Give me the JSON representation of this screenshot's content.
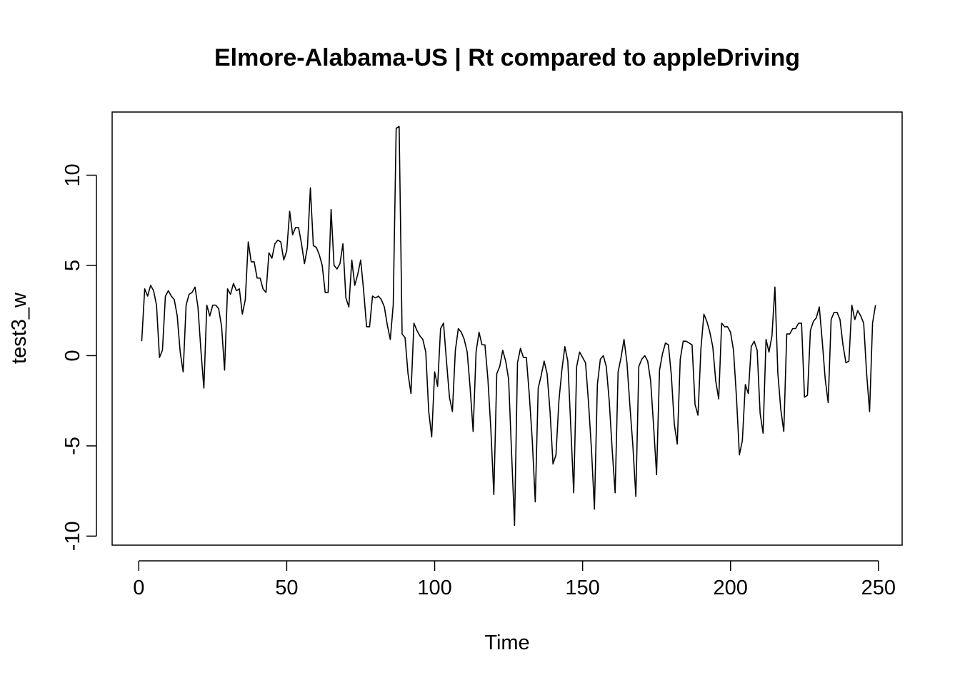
{
  "chart_data": {
    "type": "line",
    "title": "Elmore-Alabama-US | Rt compared to appleDriving",
    "xlabel": "Time",
    "ylabel": "test3_w",
    "xlim": [
      -9,
      258
    ],
    "ylim": [
      -10.5,
      13.5
    ],
    "x_ticks": [
      0,
      50,
      100,
      150,
      200,
      250
    ],
    "y_ticks": [
      -10,
      -5,
      0,
      5,
      10
    ],
    "grid": false,
    "legend": "none",
    "line_color": "#000000",
    "x_start": 1,
    "series": [
      {
        "values": [
          0.8,
          3.7,
          3.3,
          3.9,
          3.6,
          2.8,
          -0.1,
          0.3,
          3.3,
          3.6,
          3.3,
          3.1,
          2.2,
          0.2,
          -0.9,
          2.8,
          3.4,
          3.5,
          3.8,
          2.7,
          0.3,
          -1.8,
          2.8,
          2.2,
          2.8,
          2.8,
          2.6,
          1.6,
          -0.8,
          3.7,
          3.4,
          4.0,
          3.6,
          3.7,
          2.3,
          3.1,
          6.3,
          5.2,
          5.2,
          4.3,
          4.3,
          3.7,
          3.5,
          5.7,
          5.4,
          6.2,
          6.4,
          6.3,
          5.3,
          5.8,
          8.0,
          6.7,
          7.1,
          7.1,
          6.2,
          5.1,
          6.0,
          9.3,
          6.1,
          6.0,
          5.6,
          5.0,
          3.5,
          3.5,
          8.1,
          5.0,
          4.8,
          5.1,
          6.2,
          3.2,
          2.7,
          5.3,
          3.9,
          4.5,
          5.3,
          3.6,
          1.6,
          1.6,
          3.3,
          3.2,
          3.3,
          3.1,
          2.7,
          1.7,
          0.9,
          2.8,
          12.6,
          12.7,
          1.2,
          1.0,
          -1.0,
          -2.1,
          1.8,
          1.4,
          1.1,
          0.9,
          0.2,
          -3.1,
          -4.5,
          -0.9,
          -1.7,
          1.5,
          1.8,
          -0.3,
          -2.3,
          -3.1,
          0.3,
          1.5,
          1.3,
          0.9,
          0.2,
          -1.8,
          -4.2,
          0.2,
          1.3,
          0.6,
          0.6,
          -1.3,
          -4.1,
          -7.7,
          -1.0,
          -0.6,
          0.3,
          -0.3,
          -1.3,
          -5.4,
          -9.4,
          -0.4,
          0.4,
          -0.1,
          -0.1,
          -2.2,
          -4.7,
          -8.1,
          -1.8,
          -1.1,
          -0.3,
          -1.0,
          -3.1,
          -6.0,
          -5.5,
          -2.5,
          -0.8,
          0.5,
          -0.3,
          -3.9,
          -7.6,
          -0.6,
          0.2,
          -0.1,
          -0.4,
          -2.6,
          -5.2,
          -8.5,
          -1.6,
          -0.2,
          0.0,
          -0.6,
          -2.5,
          -5.2,
          -7.6,
          -0.9,
          -0.1,
          0.9,
          -0.4,
          -2.8,
          -5.0,
          -7.8,
          -0.6,
          -0.2,
          0.0,
          -0.3,
          -1.4,
          -3.9,
          -6.6,
          -0.8,
          0.1,
          0.7,
          0.6,
          -1.1,
          -3.8,
          -4.9,
          -0.2,
          0.8,
          0.8,
          0.7,
          0.6,
          -2.7,
          -3.3,
          0.4,
          2.3,
          1.9,
          1.3,
          0.5,
          -1.4,
          -2.4,
          1.8,
          1.6,
          1.6,
          1.3,
          0.3,
          -2.3,
          -5.5,
          -4.7,
          -1.6,
          -2.1,
          0.5,
          0.8,
          0.3,
          -3.2,
          -4.3,
          0.9,
          0.2,
          1.1,
          3.8,
          -1.0,
          -3.0,
          -4.2,
          1.2,
          1.2,
          1.5,
          1.5,
          1.8,
          1.8,
          -2.3,
          -2.2,
          1.4,
          1.9,
          2.1,
          2.7,
          0.8,
          -1.3,
          -2.6,
          2.0,
          2.4,
          2.4,
          2.0,
          0.6,
          -0.4,
          -0.3,
          2.8,
          2.0,
          2.5,
          2.2,
          1.8,
          -1.0,
          -3.1,
          1.8,
          2.8
        ]
      }
    ]
  }
}
